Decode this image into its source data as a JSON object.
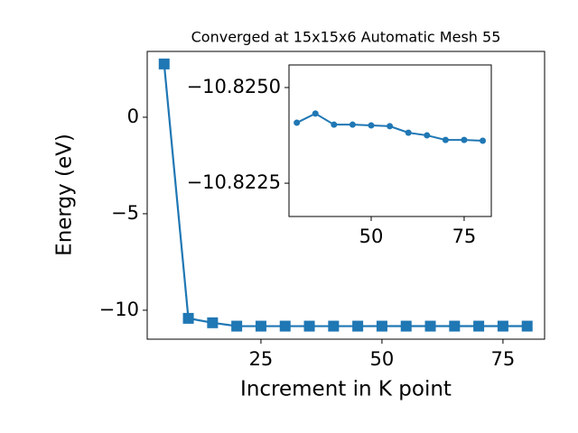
{
  "chart_data": [
    {
      "type": "line",
      "title": "Converged at 15x15x6 Automatic Mesh 55",
      "x_label": "Increment in K point",
      "y_label": "Energy (eV)",
      "x": [
        5,
        10,
        15,
        20,
        25,
        30,
        35,
        40,
        45,
        50,
        55,
        60,
        65,
        70,
        75,
        80
      ],
      "series": [
        {
          "color": "#1f77b4",
          "marker": "square",
          "values": [
            2.76,
            -10.42,
            -10.65,
            -10.8241,
            -10.8242,
            -10.82408,
            -10.82432,
            -10.82403,
            -10.82403,
            -10.82401,
            -10.82399,
            -10.82382,
            -10.82375,
            -10.82363,
            -10.82363,
            -10.82361
          ]
        }
      ],
      "xlim": [
        1.5,
        83.6
      ],
      "ylim": [
        -11.5,
        3.41
      ],
      "xticks": [
        25,
        50,
        75
      ],
      "yticks": [
        {
          "value": -10,
          "label": "−10"
        },
        {
          "value": -5,
          "label": "−5"
        },
        0
      ]
    },
    {
      "type": "line",
      "x": [
        30,
        35,
        40,
        45,
        50,
        55,
        60,
        65,
        70,
        75,
        80
      ],
      "series": [
        {
          "color": "#1f77b4",
          "marker": "circle",
          "values": [
            -10.82408,
            -10.82432,
            -10.82403,
            -10.82403,
            -10.82401,
            -10.82399,
            -10.82382,
            -10.82375,
            -10.82363,
            -10.82363,
            -10.82361
          ]
        }
      ],
      "xlim": [
        27.9,
        82.3
      ],
      "ylim": [
        -10.82163,
        -10.82559
      ],
      "xticks": [
        50,
        75
      ],
      "yticks": [
        {
          "value": -10.825,
          "label": "−10.8250"
        },
        {
          "value": -10.8225,
          "label": "−10.8225"
        }
      ]
    }
  ]
}
